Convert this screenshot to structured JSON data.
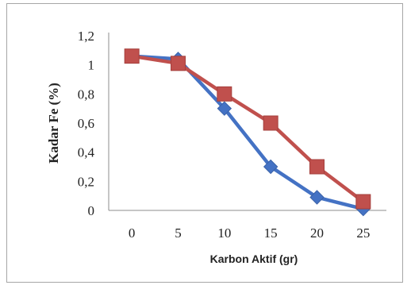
{
  "chart_data": {
    "type": "line",
    "title": "",
    "xlabel": "Karbon Aktif (gr)",
    "ylabel": "Kadar Fe (%)",
    "categories": [
      "0",
      "5",
      "10",
      "15",
      "20",
      "25"
    ],
    "ylim": [
      0,
      1.2
    ],
    "yticks": [
      "0",
      "0,2",
      "0,4",
      "0,6",
      "0,8",
      "1",
      "1,2"
    ],
    "grid": false,
    "legend": "none",
    "series": [
      {
        "values": [
          1.06,
          1.04,
          0.7,
          0.3,
          0.09,
          0.01
        ],
        "color": "#4472c4",
        "marker": "diamond"
      },
      {
        "values": [
          1.06,
          1.01,
          0.8,
          0.6,
          0.3,
          0.06
        ],
        "color": "#c0504d",
        "marker": "square"
      }
    ]
  }
}
